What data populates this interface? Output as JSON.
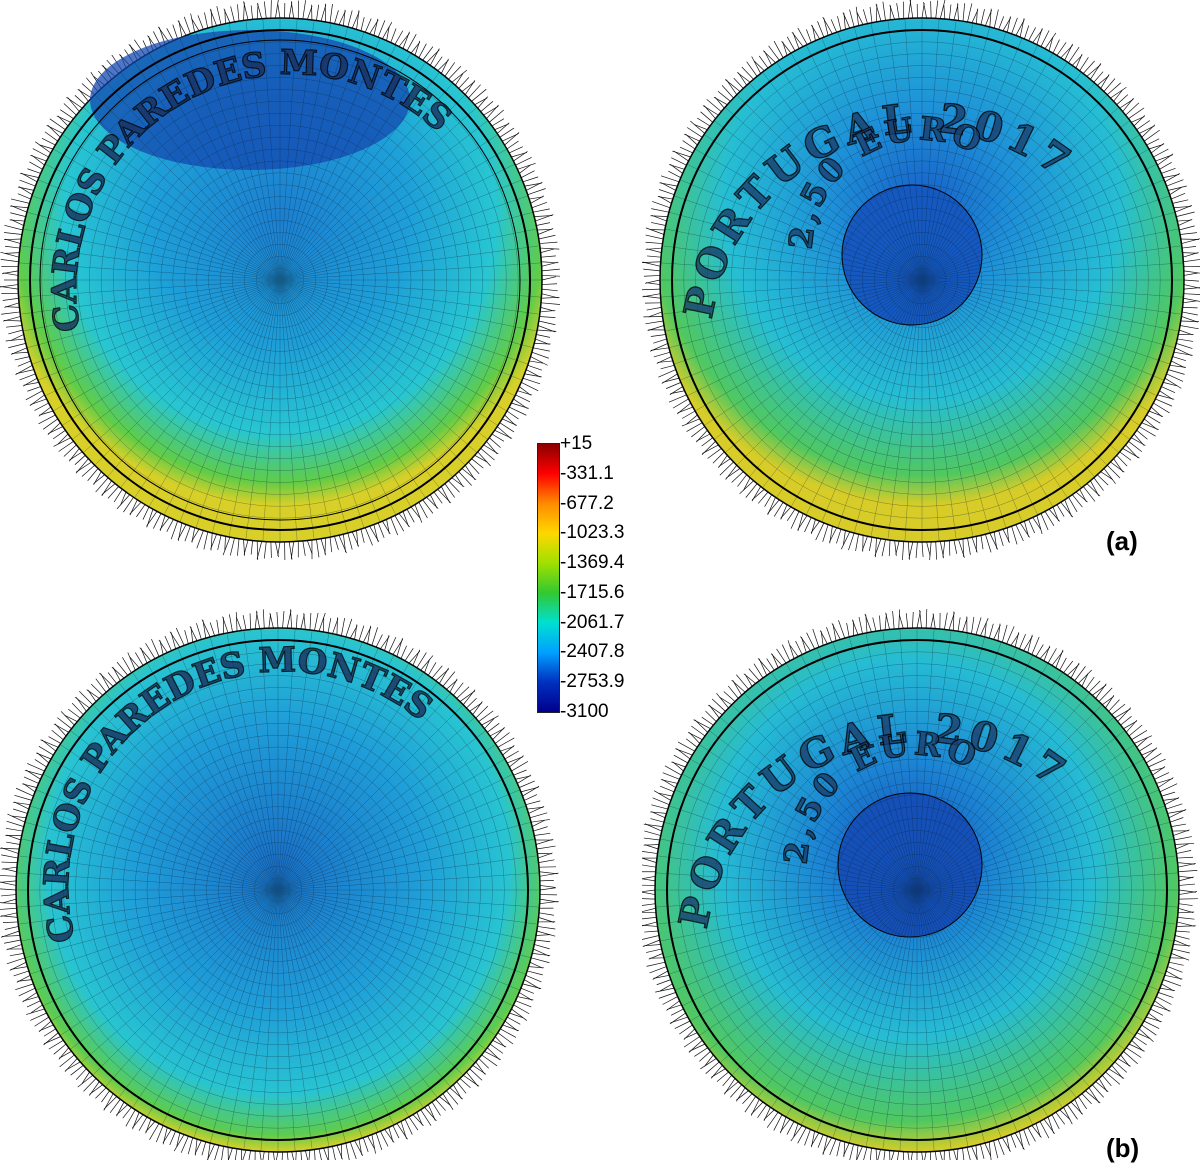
{
  "figure": {
    "panel_labels": [
      "(a)",
      "(b)"
    ]
  },
  "legend": {
    "ticks": [
      "+15",
      "-331.1",
      "-677.2",
      "-1023.3",
      "-1369.4",
      "-1715.6",
      "-2061.7",
      "-2407.8",
      "-2753.9",
      "-3100"
    ],
    "colors": [
      "#8b0000",
      "#ff0000",
      "#ff8c00",
      "#ffd700",
      "#a0e000",
      "#32c832",
      "#00e0d0",
      "#00a0ff",
      "#0030c0",
      "#00008b"
    ]
  },
  "coins": {
    "left_inscription": "CARLOS PAREDES MONTES",
    "right_inscription": "PORTUGAL 2017",
    "right_inner": "2,50 EURO"
  },
  "palette": {
    "mesh": "#000000",
    "field_cyan": "#22c0d8",
    "field_blue": "#1e78d0",
    "field_deepblue": "#1440a8",
    "rim_green": "#6ccc3c",
    "rim_yellow": "#e8d020"
  }
}
